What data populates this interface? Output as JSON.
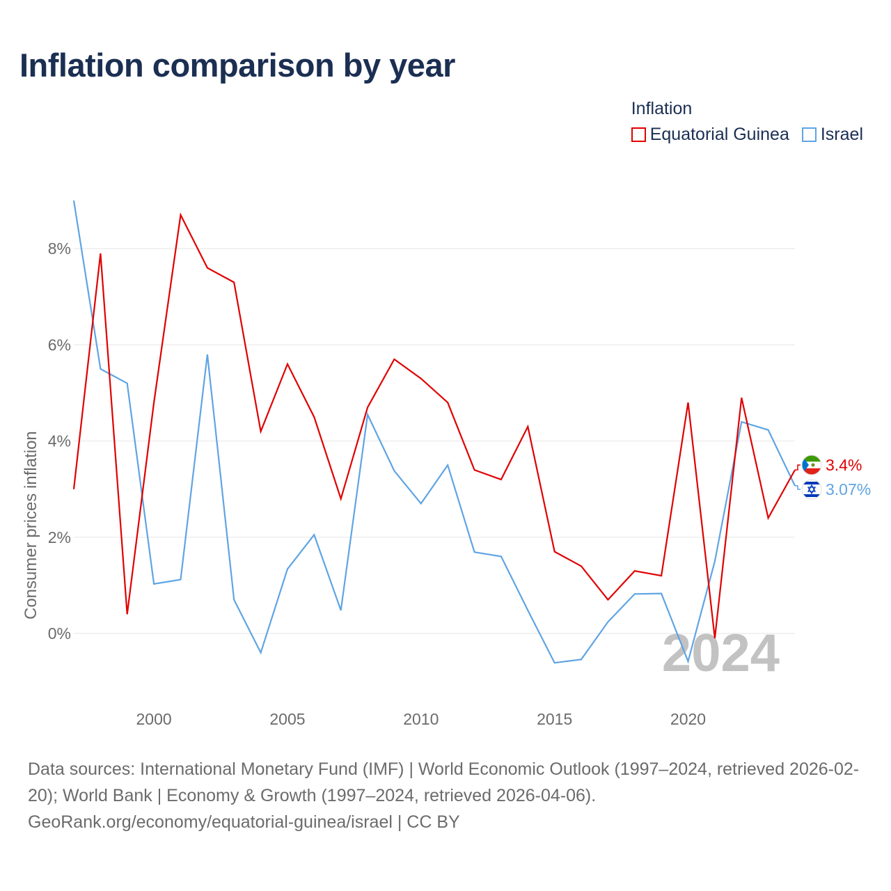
{
  "title": "Inflation comparison by year",
  "legend": {
    "title": "Inflation",
    "items": [
      {
        "label": "Equatorial Guinea",
        "color": "#e00000"
      },
      {
        "label": "Israel",
        "color": "#5fa4e3"
      }
    ]
  },
  "chart_data": {
    "type": "line",
    "title": "Inflation comparison by year",
    "xlabel": "",
    "ylabel": "Consumer prices inflation",
    "x": [
      1997,
      1998,
      1999,
      2000,
      2001,
      2002,
      2003,
      2004,
      2005,
      2006,
      2007,
      2008,
      2009,
      2010,
      2011,
      2012,
      2013,
      2014,
      2015,
      2016,
      2017,
      2018,
      2019,
      2020,
      2021,
      2022,
      2023,
      2024
    ],
    "xlim": [
      1997,
      2024
    ],
    "ylim": [
      -1.5,
      9.0
    ],
    "xticks": [
      2000,
      2005,
      2010,
      2015,
      2020
    ],
    "xtick_labels": [
      "2000",
      "2005",
      "2010",
      "2015",
      "2020"
    ],
    "yticks": [
      0,
      2,
      4,
      6,
      8
    ],
    "ytick_labels": [
      "0%",
      "2%",
      "4%",
      "6%",
      "8%"
    ],
    "grid": true,
    "year_marker": "2024",
    "series": [
      {
        "name": "Equatorial Guinea",
        "color": "#e00000",
        "end_label": "3.4%",
        "values": [
          3.0,
          7.9,
          0.4,
          4.8,
          8.7,
          7.6,
          7.3,
          4.2,
          5.6,
          4.5,
          2.8,
          4.7,
          5.7,
          5.3,
          4.8,
          3.4,
          3.2,
          4.3,
          1.7,
          1.4,
          0.7,
          1.3,
          1.2,
          4.8,
          -0.1,
          4.9,
          2.4,
          3.4
        ]
      },
      {
        "name": "Israel",
        "color": "#5fa4e3",
        "end_label": "3.07%",
        "values": [
          9.0,
          5.5,
          5.2,
          1.03,
          1.12,
          5.8,
          0.7,
          -0.4,
          1.34,
          2.05,
          0.48,
          4.55,
          3.38,
          2.7,
          3.5,
          1.69,
          1.6,
          0.48,
          -0.61,
          -0.54,
          0.24,
          0.82,
          0.83,
          -0.58,
          1.5,
          4.4,
          4.23,
          3.07
        ]
      }
    ]
  },
  "footer": {
    "sources": "Data sources: International Monetary Fund (IMF) | World Economic Outlook (1997–2024, retrieved 2026-02-20); World Bank | Economy & Growth (1997–2024, retrieved 2026-04-06).",
    "credit": "GeoRank.org/economy/equatorial-guinea/israel | CC BY"
  }
}
